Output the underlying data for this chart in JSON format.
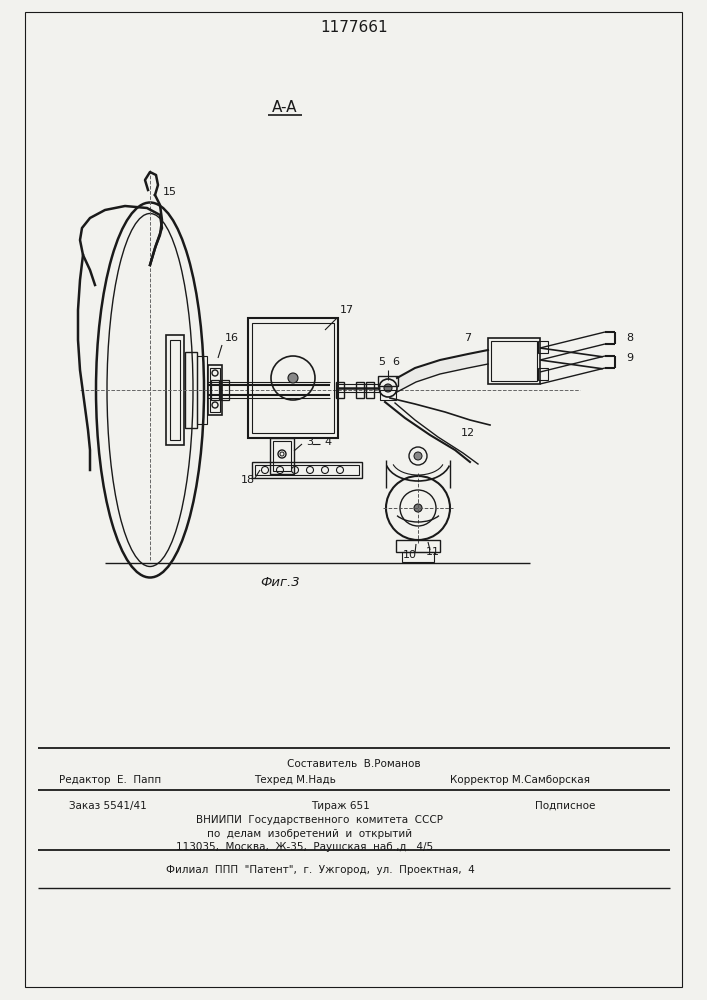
{
  "patent_number": "1177661",
  "figure_label": "Фиг.3",
  "section_label": "A-A",
  "bg_color": "#f2f2ee",
  "line_color": "#1a1a1a",
  "footer": {
    "editor": "Редактор  Е.  Папп",
    "composer": "Составитель  В.Романов",
    "techred": "Техред М.Надь",
    "corrector": "Корректор М.Самборская",
    "order": "Заказ 5541/41",
    "copies": "Тираж 651",
    "type": "Подписное",
    "vniipи": "ВНИИПИ  Государственного  комитета  СССР",
    "affairs": "по  делам  изобретений  и  открытий",
    "address": "113035,  Москва,  Ж-35,  Раушская  наб.,д.  4/5",
    "filial": "Филиал  ППП  \"Патент\",  г.  Ужгород,  ул.  Проектная,  4"
  }
}
